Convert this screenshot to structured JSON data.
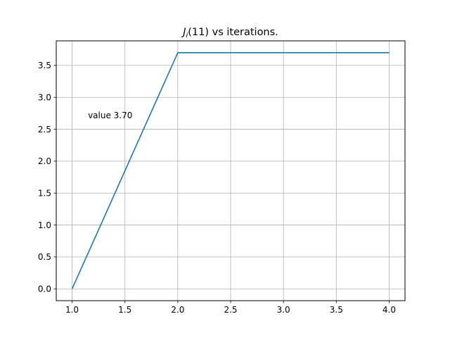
{
  "chart_data": {
    "type": "line",
    "title_func": "J",
    "title_sub": "i",
    "title_rest": "(11) vs iterations.",
    "xlabel": "",
    "ylabel": "",
    "xlim": [
      0.85,
      4.15
    ],
    "ylim": [
      -0.185,
      3.885
    ],
    "x_ticks": [
      1.0,
      1.5,
      2.0,
      2.5,
      3.0,
      3.5,
      4.0
    ],
    "x_tick_labels": [
      "1.0",
      "1.5",
      "2.0",
      "2.5",
      "3.0",
      "3.5",
      "4.0"
    ],
    "y_ticks": [
      0.0,
      0.5,
      1.0,
      1.5,
      2.0,
      2.5,
      3.0,
      3.5
    ],
    "y_tick_labels": [
      "0.0",
      "0.5",
      "1.0",
      "1.5",
      "2.0",
      "2.5",
      "3.0",
      "3.5"
    ],
    "grid": true,
    "series": [
      {
        "x": [
          1,
          2,
          3,
          4
        ],
        "y": [
          0.0,
          3.7,
          3.7,
          3.7
        ],
        "color": "#1f77b4"
      }
    ],
    "annotation": {
      "text": "value 3.70",
      "x": 1.15,
      "y": 2.72
    }
  }
}
